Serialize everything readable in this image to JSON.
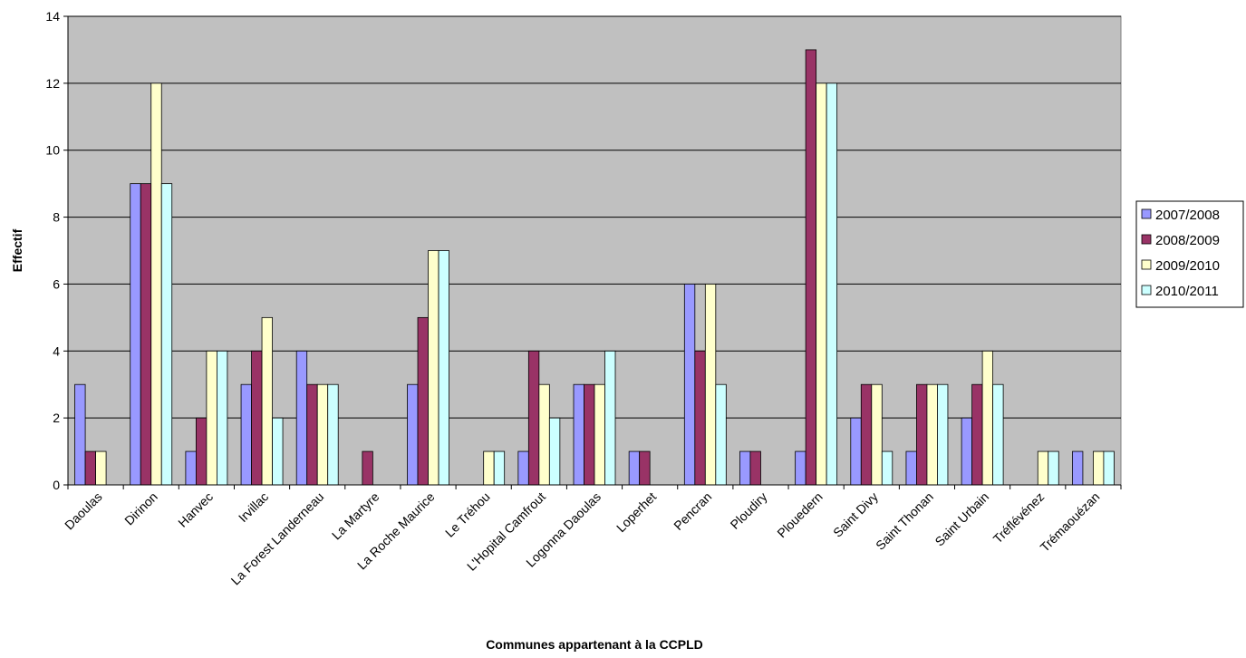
{
  "chart_data": {
    "type": "bar",
    "title": "",
    "xlabel": "Communes appartenant à la CCPLD",
    "ylabel": "Effectif",
    "ylim": [
      0,
      14
    ],
    "yticks": [
      0,
      2,
      4,
      6,
      8,
      10,
      12,
      14
    ],
    "grid": true,
    "legend_position": "right",
    "categories": [
      "Daoulas",
      "Dirinon",
      "Hanvec",
      "Irvillac",
      "La Forest Landerneau",
      "La Martyre",
      "La Roche Maurice",
      "Le Tréhou",
      "L'Hopital Camfrout",
      "Logonna Daoulas",
      "Loperhet",
      "Pencran",
      "Ploudiry",
      "Plouedern",
      "Saint Divy",
      "Saint Thonan",
      "Saint Urbain",
      "Tréflévénez",
      "Trémaouézan"
    ],
    "series": [
      {
        "name": "2007/2008",
        "color": "#9999ff",
        "values": [
          3,
          9,
          1,
          3,
          4,
          0,
          3,
          0,
          1,
          3,
          1,
          6,
          1,
          1,
          2,
          1,
          2,
          0,
          1
        ]
      },
      {
        "name": "2008/2009",
        "color": "#993366",
        "values": [
          1,
          9,
          2,
          4,
          3,
          1,
          5,
          0,
          4,
          3,
          1,
          4,
          1,
          13,
          3,
          3,
          3,
          0,
          0
        ]
      },
      {
        "name": "2009/2010",
        "color": "#ffffcc",
        "values": [
          1,
          12,
          4,
          5,
          3,
          0,
          7,
          1,
          3,
          3,
          0,
          6,
          0,
          12,
          3,
          3,
          4,
          1,
          1
        ]
      },
      {
        "name": "2010/2011",
        "color": "#ccffff",
        "values": [
          0,
          9,
          4,
          2,
          3,
          0,
          7,
          1,
          2,
          4,
          0,
          3,
          0,
          12,
          1,
          3,
          3,
          1,
          1
        ]
      }
    ],
    "plot_background": "#c0c0c0"
  }
}
